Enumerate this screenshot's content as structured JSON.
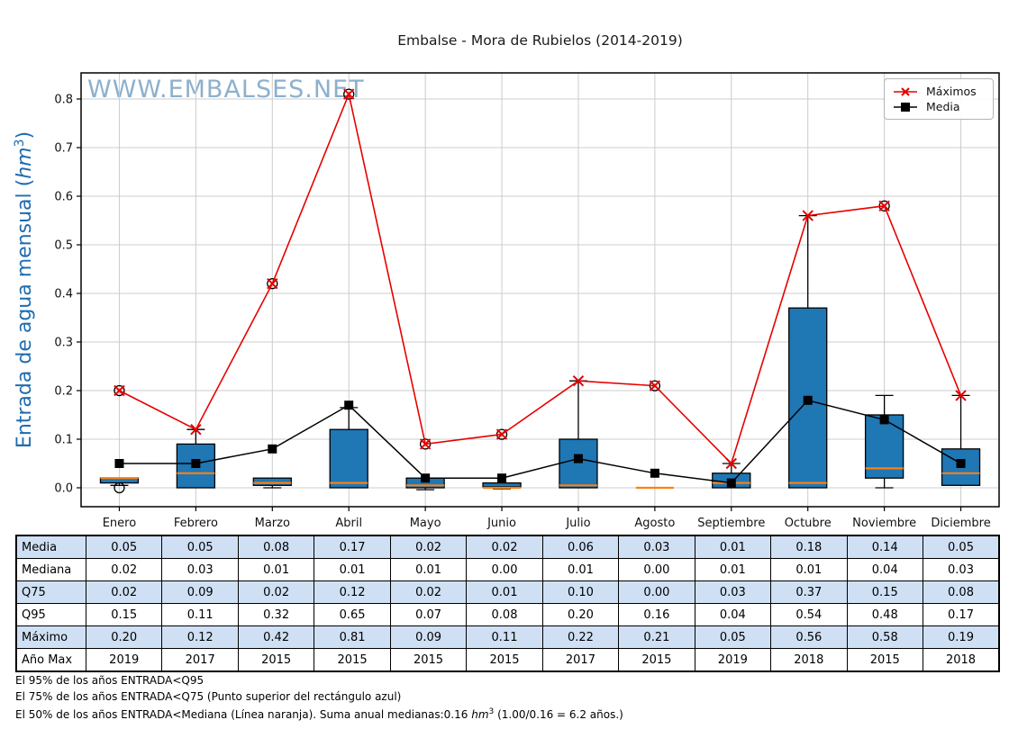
{
  "title": "Embalse - Mora de Rubielos (2014-2019)",
  "watermark": "WWW.EMBALSES.NET",
  "ylabel": {
    "prefix": "Entrada de agua mensual (",
    "math": "hm",
    "sup": "3",
    "suffix": ")"
  },
  "colors": {
    "box_fill": "#1f77b4",
    "box_edge": "#000000",
    "median_line": "#ff7f0e",
    "maximos_line": "#e60000",
    "media_line": "#000000",
    "grid": "#cccccc",
    "axis": "#000000",
    "watermark": "#7aa3c4",
    "ylabel_blue": "#1f6cb0",
    "table_shade": "#cfe0f4"
  },
  "chart_data": {
    "type": "boxplot",
    "title": "Embalse - Mora de Rubielos (2014-2019)",
    "ylabel": "Entrada de agua mensual (hm3)",
    "categories": [
      "Enero",
      "Febrero",
      "Marzo",
      "Abril",
      "Mayo",
      "Junio",
      "Julio",
      "Agosto",
      "Septiembre",
      "Octubre",
      "Noviembre",
      "Diciembre"
    ],
    "yticks": [
      0.0,
      0.1,
      0.2,
      0.3,
      0.4,
      0.5,
      0.6,
      0.7,
      0.8
    ],
    "ylim": [
      -0.04,
      0.85
    ],
    "grid": true,
    "legend_position": "upper right",
    "series": [
      {
        "name": "Máximos",
        "type": "line",
        "marker": "x",
        "color": "#e60000",
        "values": [
          0.2,
          0.12,
          0.42,
          0.81,
          0.09,
          0.11,
          0.22,
          0.21,
          0.05,
          0.56,
          0.58,
          0.19
        ]
      },
      {
        "name": "Media",
        "type": "line",
        "marker": "square",
        "color": "#000000",
        "values": [
          0.05,
          0.05,
          0.08,
          0.17,
          0.02,
          0.02,
          0.06,
          0.03,
          0.01,
          0.18,
          0.14,
          0.05
        ]
      }
    ],
    "boxes": [
      {
        "month": "Enero",
        "q25": 0.01,
        "median": 0.02,
        "q75": 0.02,
        "whisker_low": 0.005,
        "whisker_high": 0.02,
        "fliers": [
          0.0,
          0.2
        ]
      },
      {
        "month": "Febrero",
        "q25": 0.0,
        "median": 0.03,
        "q75": 0.09,
        "whisker_low": 0.0,
        "whisker_high": 0.12,
        "fliers": []
      },
      {
        "month": "Marzo",
        "q25": 0.005,
        "median": 0.01,
        "q75": 0.02,
        "whisker_low": 0.0,
        "whisker_high": 0.02,
        "fliers": [
          0.42
        ]
      },
      {
        "month": "Abril",
        "q25": 0.0,
        "median": 0.01,
        "q75": 0.12,
        "whisker_low": 0.0,
        "whisker_high": 0.165,
        "fliers": [
          0.81
        ]
      },
      {
        "month": "Mayo",
        "q25": 0.0,
        "median": 0.005,
        "q75": 0.02,
        "whisker_low": -0.004,
        "whisker_high": 0.02,
        "fliers": [
          0.09
        ]
      },
      {
        "month": "Junio",
        "q25": 0.002,
        "median": 0.0,
        "q75": 0.01,
        "whisker_low": -0.002,
        "whisker_high": 0.01,
        "fliers": [
          0.11
        ]
      },
      {
        "month": "Julio",
        "q25": 0.0,
        "median": 0.005,
        "q75": 0.1,
        "whisker_low": 0.0,
        "whisker_high": 0.22,
        "fliers": []
      },
      {
        "month": "Agosto",
        "q25": 0.0,
        "median": 0.0,
        "q75": 0.0,
        "whisker_low": 0.0,
        "whisker_high": 0.0,
        "fliers": [
          0.21
        ]
      },
      {
        "month": "Septiembre",
        "q25": 0.0,
        "median": 0.01,
        "q75": 0.03,
        "whisker_low": 0.0,
        "whisker_high": 0.05,
        "fliers": []
      },
      {
        "month": "Octubre",
        "q25": 0.0,
        "median": 0.01,
        "q75": 0.37,
        "whisker_low": 0.0,
        "whisker_high": 0.56,
        "fliers": []
      },
      {
        "month": "Noviembre",
        "q25": 0.02,
        "median": 0.04,
        "q75": 0.15,
        "whisker_low": 0.0,
        "whisker_high": 0.19,
        "fliers": [
          0.58
        ]
      },
      {
        "month": "Diciembre",
        "q25": 0.005,
        "median": 0.03,
        "q75": 0.08,
        "whisker_low": 0.005,
        "whisker_high": 0.19,
        "fliers": []
      }
    ]
  },
  "table": {
    "row_labels": [
      "Media",
      "Mediana",
      "Q75",
      "Q95",
      "Máximo",
      "Año Max"
    ],
    "columns": [
      "Enero",
      "Febrero",
      "Marzo",
      "Abril",
      "Mayo",
      "Junio",
      "Julio",
      "Agosto",
      "Septiembre",
      "Octubre",
      "Noviembre",
      "Diciembre"
    ],
    "rows": [
      [
        "0.05",
        "0.05",
        "0.08",
        "0.17",
        "0.02",
        "0.02",
        "0.06",
        "0.03",
        "0.01",
        "0.18",
        "0.14",
        "0.05"
      ],
      [
        "0.02",
        "0.03",
        "0.01",
        "0.01",
        "0.01",
        "0.00",
        "0.01",
        "0.00",
        "0.01",
        "0.01",
        "0.04",
        "0.03"
      ],
      [
        "0.02",
        "0.09",
        "0.02",
        "0.12",
        "0.02",
        "0.01",
        "0.10",
        "0.00",
        "0.03",
        "0.37",
        "0.15",
        "0.08"
      ],
      [
        "0.15",
        "0.11",
        "0.32",
        "0.65",
        "0.07",
        "0.08",
        "0.20",
        "0.16",
        "0.04",
        "0.54",
        "0.48",
        "0.17"
      ],
      [
        "0.20",
        "0.12",
        "0.42",
        "0.81",
        "0.09",
        "0.11",
        "0.22",
        "0.21",
        "0.05",
        "0.56",
        "0.58",
        "0.19"
      ],
      [
        "2019",
        "2017",
        "2015",
        "2015",
        "2015",
        "2015",
        "2017",
        "2015",
        "2019",
        "2018",
        "2015",
        "2018"
      ]
    ]
  },
  "notes": {
    "line1": "El 95% de los años ENTRADA<Q95",
    "line2": "El 75% de los años ENTRADA<Q75 (Punto superior del rectángulo azul)",
    "line3_pre": "El 50% de los años ENTRADA<Mediana (Línea naranja). Suma anual medianas:0.16 ",
    "line3_math": "hm",
    "line3_sup": "3",
    "line3_post": " (1.00/0.16 = 6.2 años.)"
  }
}
